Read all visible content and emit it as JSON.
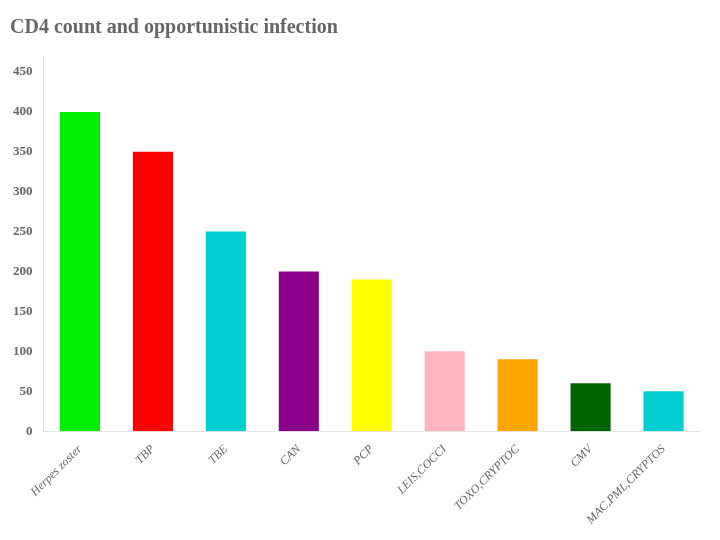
{
  "chart_data": {
    "type": "bar",
    "title": "CD4 count and opportunistic infection",
    "categories": [
      "Herpes zoster",
      "TBP",
      "TBE",
      "CAN",
      "PCP",
      "LEIS,COCCI",
      "TOXO,CRYPTOC",
      "CMV",
      "MAC,PML,CRYPTOS"
    ],
    "values": [
      400,
      350,
      250,
      200,
      190,
      100,
      90,
      60,
      50
    ],
    "colors": [
      "#00ee00",
      "#ff0000",
      "#00ced1",
      "#8b008b",
      "#ffff00",
      "#ffb6c1",
      "#ffa500",
      "#006400",
      "#00ced1"
    ],
    "ylim": [
      0,
      470
    ],
    "yticks": [
      0,
      50,
      100,
      150,
      200,
      250,
      300,
      350,
      400,
      450
    ],
    "grid": false
  }
}
